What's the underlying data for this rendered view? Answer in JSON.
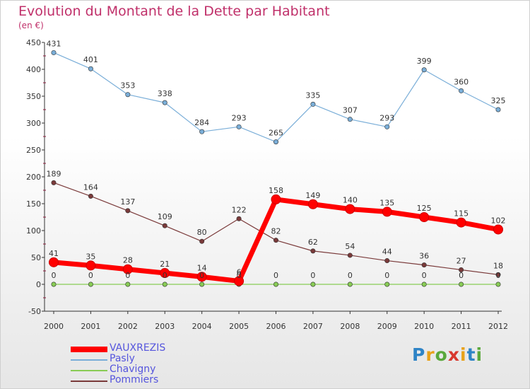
{
  "header": {
    "title": "Evolution du Montant de la Dette par Habitant",
    "subtitle": "(en €)"
  },
  "logo": {
    "text": "Proxiti",
    "letters": [
      {
        "ch": "P",
        "color": "#2e84c6"
      },
      {
        "ch": "r",
        "color": "#e8a21a"
      },
      {
        "ch": "o",
        "color": "#5aa83c"
      },
      {
        "ch": "x",
        "color": "#d8382e"
      },
      {
        "ch": "i",
        "color": "#e8a21a"
      },
      {
        "ch": "t",
        "color": "#2e84c6"
      },
      {
        "ch": "i",
        "color": "#5aa83c"
      }
    ]
  },
  "chart_data": {
    "type": "line",
    "title": "Evolution du Montant de la Dette par Habitant",
    "ylabel": "(en €)",
    "xlabel": "",
    "ylim": [
      -50,
      450
    ],
    "yticks": [
      -50,
      0,
      50,
      100,
      150,
      200,
      250,
      300,
      350,
      400,
      450
    ],
    "x": [
      "2000",
      "2001",
      "2002",
      "2003",
      "2004",
      "2005",
      "2006",
      "2007",
      "2008",
      "2009",
      "2010",
      "2011",
      "2012"
    ],
    "grid": false,
    "legend_position": "bottom-left",
    "series": [
      {
        "name": "VAUXREZIS",
        "color": "#ff0000",
        "bold": true,
        "values": [
          41,
          35,
          28,
          21,
          14,
          6,
          158,
          149,
          140,
          135,
          125,
          115,
          102
        ],
        "labels": [
          "41",
          "35",
          "28",
          "21",
          "14",
          "6",
          "158",
          "149",
          "140",
          "135",
          "125",
          "115",
          "102"
        ]
      },
      {
        "name": "Pasly",
        "color": "#7aaed8",
        "bold": false,
        "values": [
          431,
          401,
          353,
          338,
          284,
          293,
          265,
          335,
          307,
          293,
          399,
          360,
          325
        ],
        "labels": [
          "431",
          "401",
          "353",
          "338",
          "284",
          "293",
          "265",
          "335",
          "307",
          "293",
          "399",
          "360",
          "325"
        ]
      },
      {
        "name": "Chavigny",
        "color": "#88cc55",
        "bold": false,
        "values": [
          0,
          0,
          0,
          0,
          0,
          0,
          0,
          0,
          0,
          0,
          0,
          0,
          0
        ],
        "labels": [
          "0",
          "0",
          "0",
          "0",
          "0",
          "0",
          "0",
          "0",
          "0",
          "0",
          "0",
          "0",
          "0"
        ]
      },
      {
        "name": "Pommiers",
        "color": "#7a3a3a",
        "bold": false,
        "values": [
          189,
          164,
          137,
          109,
          80,
          122,
          82,
          62,
          54,
          44,
          36,
          27,
          18
        ],
        "labels": [
          "189",
          "164",
          "137",
          "109",
          "80",
          "122",
          "82",
          "62",
          "54",
          "44",
          "36",
          "27",
          "18"
        ]
      }
    ]
  }
}
